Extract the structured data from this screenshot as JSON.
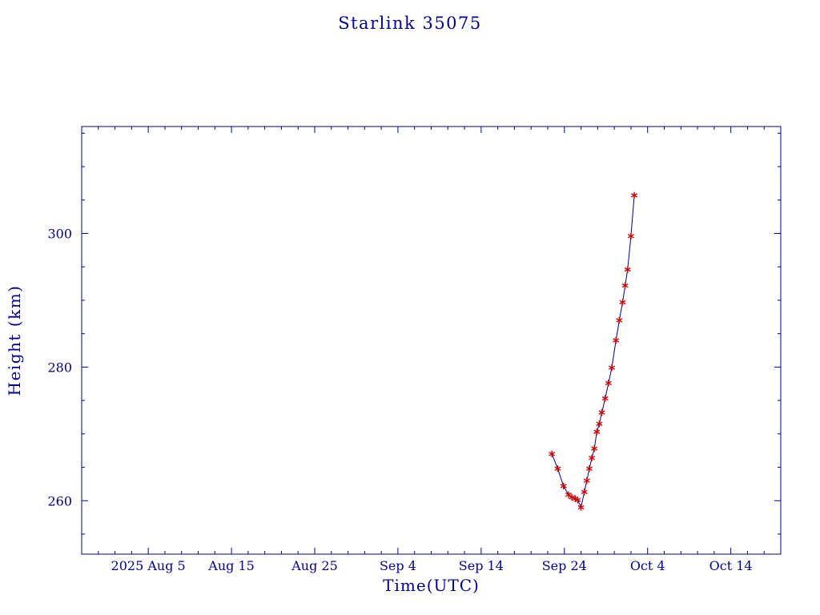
{
  "colors": {
    "background": "#FFFFFF",
    "text": "#00008B",
    "axis": "#00008B",
    "line": "#00008B",
    "marker": "#CC0000"
  },
  "chart_data": {
    "type": "line",
    "title": "Starlink 35075",
    "xlabel": "Time(UTC)",
    "ylabel": "Height (km)",
    "grid": false,
    "ylim": [
      252,
      316
    ],
    "y_major_ticks": [
      260,
      280,
      300
    ],
    "y_minor_step": 5,
    "x_unit": "days-from-plot-left-edge",
    "xlim": [
      0,
      84
    ],
    "x_minor_step": 2,
    "x_major_ticks": [
      {
        "day": 8,
        "label": "2025 Aug 5"
      },
      {
        "day": 18,
        "label": "Aug 15"
      },
      {
        "day": 28,
        "label": "Aug 25"
      },
      {
        "day": 38,
        "label": "Sep 4"
      },
      {
        "day": 48,
        "label": "Sep 14"
      },
      {
        "day": 58,
        "label": "Sep 24"
      },
      {
        "day": 68,
        "label": "Oct 4"
      },
      {
        "day": 78,
        "label": "Oct 14"
      }
    ],
    "series": [
      {
        "name": "Height (km)",
        "marker": "red-asterisk",
        "line_color": "#00008B",
        "marker_color": "#CC0000",
        "points": [
          {
            "day": 56.5,
            "km": 267.0
          },
          {
            "day": 57.2,
            "km": 264.8
          },
          {
            "day": 57.9,
            "km": 262.2
          },
          {
            "day": 58.5,
            "km": 260.9
          },
          {
            "day": 58.9,
            "km": 260.5
          },
          {
            "day": 59.3,
            "km": 260.3
          },
          {
            "day": 59.6,
            "km": 260.1
          },
          {
            "day": 60.0,
            "km": 259.0
          },
          {
            "day": 60.4,
            "km": 261.3
          },
          {
            "day": 60.7,
            "km": 263.0
          },
          {
            "day": 61.0,
            "km": 264.8
          },
          {
            "day": 61.3,
            "km": 266.4
          },
          {
            "day": 61.6,
            "km": 267.8
          },
          {
            "day": 61.9,
            "km": 270.3
          },
          {
            "day": 62.2,
            "km": 271.5
          },
          {
            "day": 62.5,
            "km": 273.2
          },
          {
            "day": 62.9,
            "km": 275.3
          },
          {
            "day": 63.3,
            "km": 277.6
          },
          {
            "day": 63.7,
            "km": 279.9
          },
          {
            "day": 64.2,
            "km": 284.0
          },
          {
            "day": 64.6,
            "km": 287.0
          },
          {
            "day": 65.0,
            "km": 289.7
          },
          {
            "day": 65.3,
            "km": 292.2
          },
          {
            "day": 65.6,
            "km": 294.6
          },
          {
            "day": 66.0,
            "km": 299.6
          },
          {
            "day": 66.4,
            "km": 305.7
          }
        ]
      }
    ]
  }
}
